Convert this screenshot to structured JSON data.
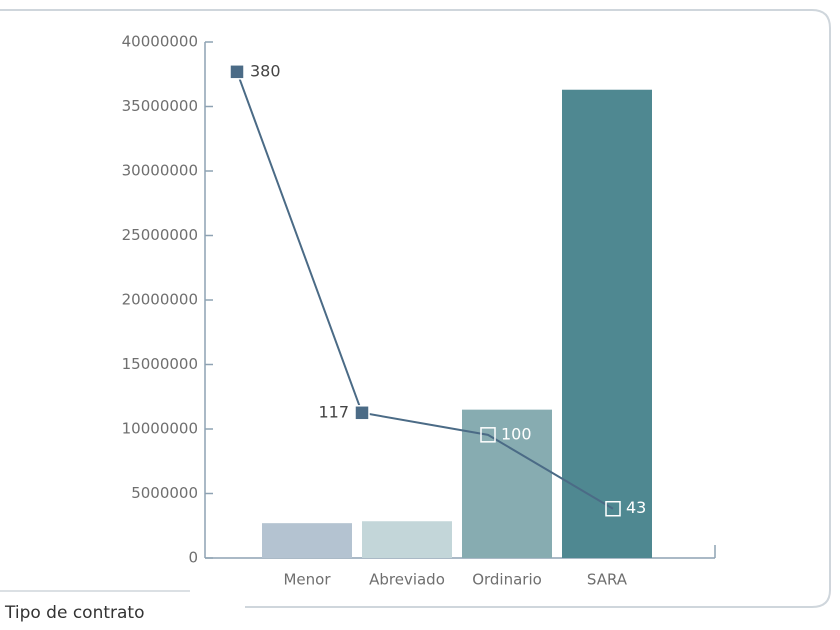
{
  "chart_data": {
    "type": "bar",
    "x_label": "Tipo de contrato",
    "categories": [
      "Menor",
      "Abreviado",
      "Ordinario",
      "SARA"
    ],
    "series": [
      {
        "type": "bar",
        "values": [
          2700000,
          2850000,
          11500000,
          36300000
        ],
        "colors": [
          "#b4c3d1",
          "#c3d6d9",
          "#87acb1",
          "#4f8891"
        ]
      },
      {
        "type": "line",
        "axis": "y2",
        "values": [
          380,
          117,
          100,
          43
        ],
        "color": "#4b6b86"
      }
    ],
    "ylim": [
      0,
      40000000
    ],
    "yticks": [
      0,
      5000000,
      10000000,
      15000000,
      20000000,
      25000000,
      30000000,
      35000000,
      40000000
    ],
    "y2lim": [
      5,
      403
    ]
  }
}
